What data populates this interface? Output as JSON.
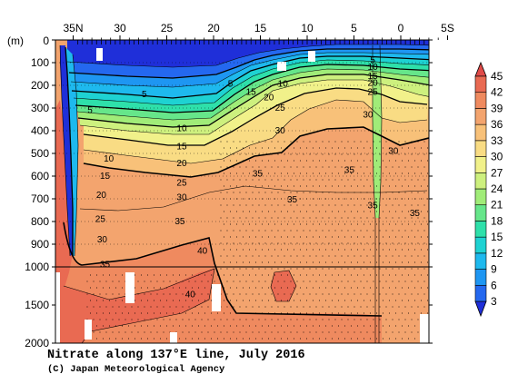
{
  "chart_data": {
    "type": "heatmap",
    "title": "Nitrate along 137°E line, July 2016",
    "credit": "(C) Japan Meteorological Agency",
    "ylabel": "(m)",
    "x_ticks": [
      "35N",
      "30",
      "25",
      "20",
      "15",
      "10",
      "5",
      "0",
      "5S"
    ],
    "x_tick_values": [
      35,
      30,
      25,
      20,
      15,
      10,
      5,
      0,
      -5
    ],
    "xlim": [
      35,
      -5
    ],
    "y_ticks": [
      "0",
      "100",
      "200",
      "300",
      "400",
      "500",
      "600",
      "700",
      "800",
      "900",
      "1000",
      "1500",
      "2000"
    ],
    "y_tick_values": [
      0,
      100,
      200,
      300,
      400,
      500,
      600,
      700,
      800,
      900,
      1000,
      1500,
      2000
    ],
    "ylim": [
      0,
      2000
    ],
    "y_scale_note": "upper panel 0-1000 m linear, lower panel 1000-2000 m compressed",
    "colorbar": {
      "levels": [
        3,
        6,
        9,
        12,
        15,
        18,
        21,
        24,
        27,
        30,
        33,
        36,
        39,
        42,
        45
      ],
      "labels": [
        "45",
        "42",
        "39",
        "36",
        "33",
        "30",
        "27",
        "24",
        "21",
        "18",
        "15",
        "12",
        "9",
        "6",
        "3"
      ],
      "colors": [
        "#1f2fd9",
        "#2468ef",
        "#1e96f2",
        "#1eb9ee",
        "#1ed2d2",
        "#2ee0aa",
        "#66e68a",
        "#a0ec78",
        "#cdf07e",
        "#f1f18a",
        "#f9dc84",
        "#f8c179",
        "#f3a46e",
        "#ef8a5f",
        "#e96a52",
        "#e04a48"
      ]
    },
    "contour_labels": [
      {
        "text": "5",
        "lat": 33.2,
        "depth": 305
      },
      {
        "text": "5",
        "lat": 27.4,
        "depth": 235
      },
      {
        "text": "5",
        "lat": 18.2,
        "depth": 190
      },
      {
        "text": "5",
        "lat": 3.0,
        "depth": 85
      },
      {
        "text": "10",
        "lat": 31.2,
        "depth": 520
      },
      {
        "text": "10",
        "lat": 23.4,
        "depth": 385
      },
      {
        "text": "10",
        "lat": 12.6,
        "depth": 190
      },
      {
        "text": "10",
        "lat": 3.0,
        "depth": 115
      },
      {
        "text": "15",
        "lat": 31.6,
        "depth": 595
      },
      {
        "text": "15",
        "lat": 23.4,
        "depth": 465
      },
      {
        "text": "15",
        "lat": 16.0,
        "depth": 225
      },
      {
        "text": "15",
        "lat": 3.0,
        "depth": 155
      },
      {
        "text": "20",
        "lat": 32.0,
        "depth": 680
      },
      {
        "text": "20",
        "lat": 23.4,
        "depth": 540
      },
      {
        "text": "20",
        "lat": 14.1,
        "depth": 250
      },
      {
        "text": "20",
        "lat": 3.0,
        "depth": 185
      },
      {
        "text": "25",
        "lat": 32.1,
        "depth": 785
      },
      {
        "text": "25",
        "lat": 23.4,
        "depth": 625
      },
      {
        "text": "25",
        "lat": 12.9,
        "depth": 295
      },
      {
        "text": "25",
        "lat": 3.0,
        "depth": 225
      },
      {
        "text": "30",
        "lat": 31.9,
        "depth": 875
      },
      {
        "text": "30",
        "lat": 23.4,
        "depth": 690
      },
      {
        "text": "30",
        "lat": 12.9,
        "depth": 395
      },
      {
        "text": "30",
        "lat": 3.5,
        "depth": 325
      },
      {
        "text": "30",
        "lat": 0.8,
        "depth": 485
      },
      {
        "text": "35",
        "lat": 31.6,
        "depth": 985
      },
      {
        "text": "35",
        "lat": 23.6,
        "depth": 795
      },
      {
        "text": "35",
        "lat": 15.3,
        "depth": 585
      },
      {
        "text": "35",
        "lat": 11.6,
        "depth": 700
      },
      {
        "text": "35",
        "lat": 5.5,
        "depth": 570
      },
      {
        "text": "35",
        "lat": 3.0,
        "depth": 725
      },
      {
        "text": "35",
        "lat": -1.5,
        "depth": 760
      },
      {
        "text": "40",
        "lat": 21.2,
        "depth": 925
      },
      {
        "text": "40",
        "lat": 22.5,
        "depth": 1350
      }
    ]
  }
}
